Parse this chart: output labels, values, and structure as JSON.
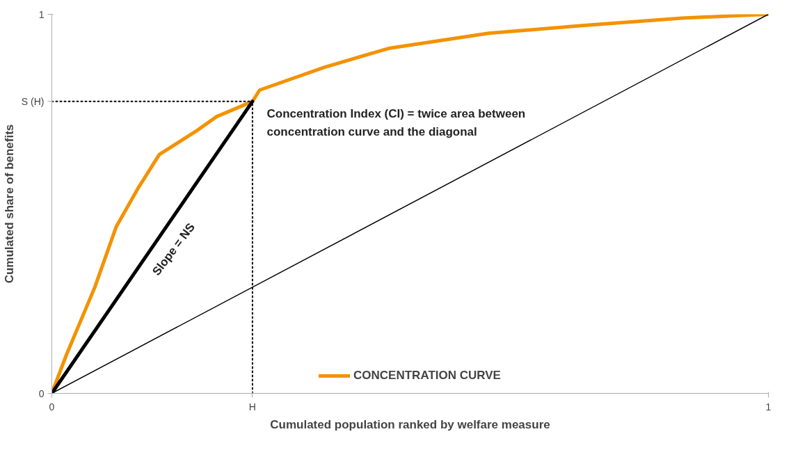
{
  "chart_data": {
    "type": "line",
    "xlabel": "Cumulated population ranked by welfare measure",
    "ylabel": "Cumulated share of benefits",
    "xlim": [
      0,
      1
    ],
    "ylim": [
      0,
      1
    ],
    "xticks": [
      0,
      {
        "value": 0.28,
        "label": "H"
      },
      1
    ],
    "yticks": [
      0,
      {
        "value": 0.77,
        "label": "S (H)"
      },
      1
    ],
    "grid": false,
    "legend": "bottom",
    "line_style": "solid",
    "marker": "none",
    "series": [
      {
        "name": "CONCENTRATION CURVE",
        "color": "#f39200",
        "x": [
          0,
          0.02,
          0.06,
          0.09,
          0.12,
          0.15,
          0.2,
          0.23,
          0.28,
          0.29,
          0.38,
          0.47,
          0.61,
          0.74,
          0.88,
          1
        ],
        "values": [
          0,
          0.1,
          0.28,
          0.44,
          0.54,
          0.63,
          0.69,
          0.73,
          0.77,
          0.8,
          0.86,
          0.91,
          0.95,
          0.97,
          0.99,
          1
        ]
      },
      {
        "color": "#000000",
        "x": [
          0,
          0.28
        ],
        "values": [
          0,
          0.77
        ]
      },
      {
        "color": "#000000",
        "x": [
          0,
          1
        ],
        "values": [
          0,
          1
        ]
      },
      {
        "color": "#000000",
        "x": [
          0,
          0.28
        ],
        "values": [
          0.77,
          0.77
        ],
        "line_style": "dotted"
      },
      {
        "color": "#000000",
        "x": [
          0.28,
          0.28
        ],
        "values": [
          0,
          0.77
        ],
        "line_style": "dotted"
      }
    ],
    "annotations": [
      "Slope = NS",
      "Concentration Index (CI) = twice area between\nconcentration curve and the diagonal"
    ]
  }
}
